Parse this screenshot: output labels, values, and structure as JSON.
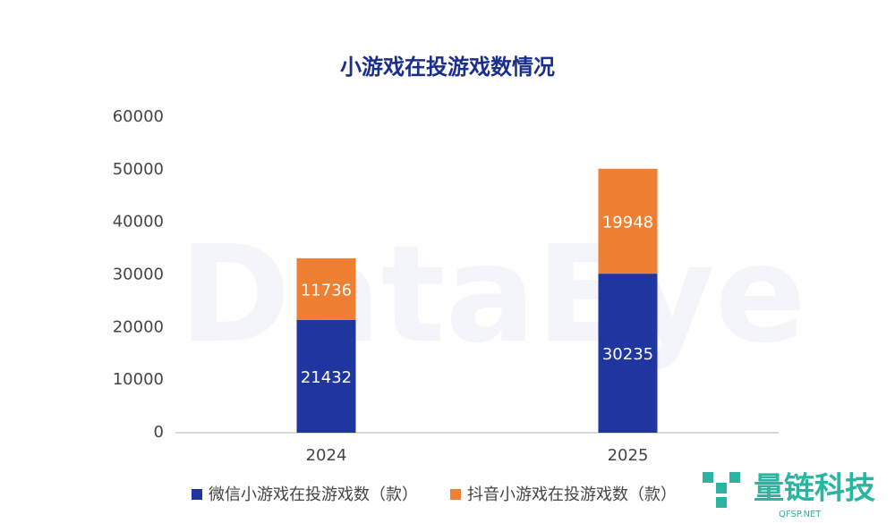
{
  "chart_data": {
    "type": "bar",
    "stacked": true,
    "title": "小游戏在投游戏数情况",
    "categories": [
      "2024",
      "2025"
    ],
    "series": [
      {
        "name": "微信小游戏在投游戏数（款）",
        "color": "#1f35a0",
        "values": [
          21432,
          30235
        ]
      },
      {
        "name": "抖音小游戏在投游戏数（款）",
        "color": "#ee7f33",
        "values": [
          11736,
          19948
        ]
      }
    ],
    "ylim": [
      0,
      60000
    ],
    "yticks": [
      0,
      10000,
      20000,
      30000,
      40000,
      50000,
      60000
    ],
    "grid": false,
    "legend": "bottom",
    "watermark": "DataEye",
    "logo_text": "量链科技",
    "logo_subtext": "QFSP.NET"
  }
}
